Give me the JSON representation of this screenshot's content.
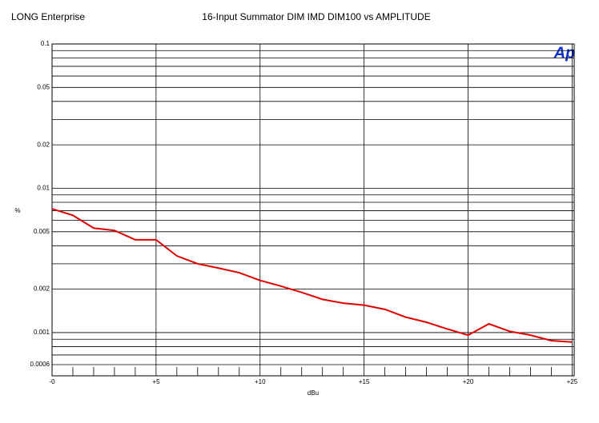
{
  "chart_data": {
    "type": "line",
    "header": "LONG Enterprise",
    "title": "16-Input Summator DIM IMD DIM100 vs AMPLITUDE",
    "logo": "Ap",
    "y_label": "%",
    "x_label": "dBu",
    "log_y": true,
    "xlim": [
      0,
      25.1
    ],
    "ylim": [
      0.0006,
      0.1
    ],
    "xticks": [
      {
        "value": 0,
        "label": "-0"
      },
      {
        "value": 5,
        "label": "+5"
      },
      {
        "value": 10,
        "label": "+10"
      },
      {
        "value": 15,
        "label": "+15"
      },
      {
        "value": 20,
        "label": "+20"
      },
      {
        "value": 25,
        "label": "+25"
      }
    ],
    "xminorticks": [
      1,
      2,
      3,
      4,
      6,
      7,
      8,
      9,
      11,
      12,
      13,
      14,
      16,
      17,
      18,
      19,
      21,
      22,
      23,
      24
    ],
    "yticks": [
      0.1,
      0.05,
      0.02,
      0.01,
      0.005,
      0.002,
      0.001,
      0.0006
    ],
    "ygrid": [
      0.09,
      0.08,
      0.07,
      0.06,
      0.04,
      0.03,
      0.009,
      0.008,
      0.007,
      0.006,
      0.004,
      0.003,
      0.0009,
      0.0008,
      0.0007
    ],
    "x": [
      0,
      1,
      2,
      3,
      4,
      5,
      6,
      7,
      8,
      9,
      10,
      11,
      12,
      13,
      14,
      15,
      16,
      17,
      18,
      19,
      20,
      21,
      22,
      23,
      24,
      25
    ],
    "series": [
      {
        "color": "#e00000",
        "values": [
          0.0072,
          0.0065,
          0.0053,
          0.0051,
          0.0044,
          0.0044,
          0.0034,
          0.003,
          0.0028,
          0.0026,
          0.0023,
          0.0021,
          0.0019,
          0.0017,
          0.0016,
          0.00155,
          0.00145,
          0.00128,
          0.00118,
          0.00106,
          0.00096,
          0.00115,
          0.00102,
          0.00096,
          0.00088,
          0.00086
        ]
      }
    ]
  }
}
